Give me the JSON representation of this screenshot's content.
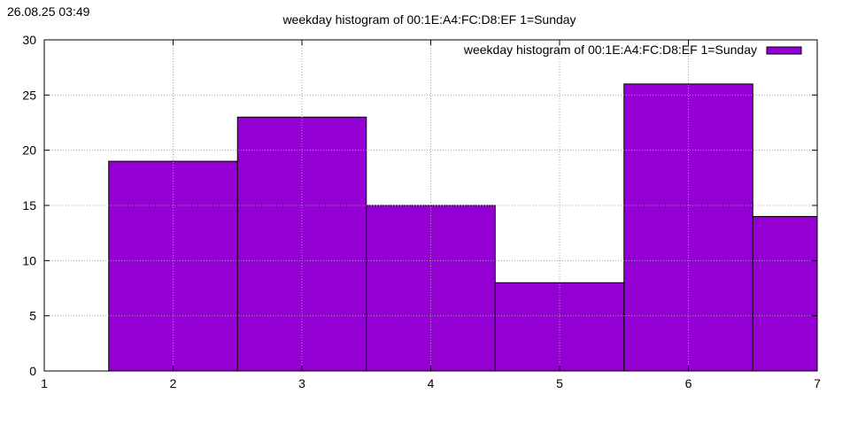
{
  "timestamp": "26.08.25 03:49",
  "chart_data": {
    "type": "bar",
    "title": "weekday histogram of 00:1E:A4:FC:D8:EF 1=Sunday",
    "xlabel": "",
    "ylabel": "",
    "xlim": [
      1,
      7
    ],
    "ylim": [
      0,
      30
    ],
    "x_ticks": [
      "1",
      "2",
      "3",
      "4",
      "5",
      "6",
      "7"
    ],
    "y_ticks": [
      "0",
      "5",
      "10",
      "15",
      "20",
      "25",
      "30"
    ],
    "grid": true,
    "legend_position": "top-right",
    "bar_color": "#9400d3",
    "series": [
      {
        "name": "weekday histogram of 00:1E:A4:FC:D8:EF 1=Sunday",
        "x": [
          2,
          3,
          4,
          5,
          6,
          7
        ],
        "values": [
          19,
          23,
          15,
          8,
          26,
          14
        ]
      }
    ]
  }
}
